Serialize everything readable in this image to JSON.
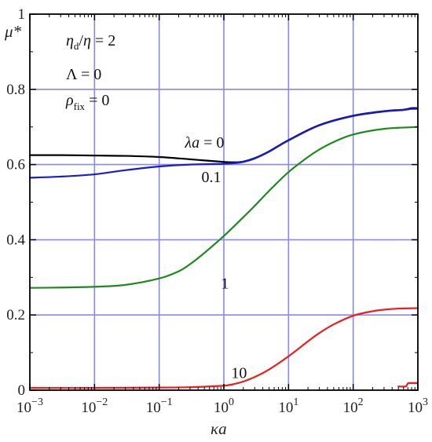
{
  "chart_data": {
    "type": "line",
    "xscale": "log",
    "xlim": [
      0.001,
      1000
    ],
    "ylim": [
      0,
      1
    ],
    "xlabel": "κa",
    "ylabel": "μ*",
    "grid": true,
    "x_ticks": [
      0.001,
      0.01,
      0.1,
      1,
      10,
      100,
      1000
    ],
    "x_tick_labels": [
      {
        "base": "10",
        "exp": "−3"
      },
      {
        "base": "10",
        "exp": "−2"
      },
      {
        "base": "10",
        "exp": "−1"
      },
      {
        "base": "10",
        "exp": "0"
      },
      {
        "base": "10",
        "exp": "1"
      },
      {
        "base": "10",
        "exp": "2"
      },
      {
        "base": "10",
        "exp": "3"
      }
    ],
    "y_ticks": [
      0,
      0.2,
      0.4,
      0.6,
      0.8,
      1
    ],
    "y_tick_labels": [
      "0",
      "0.2",
      "0.4",
      "0.6",
      "0.8",
      "1"
    ],
    "parameters": {
      "line1": {
        "a": "η",
        "a_sub": "d",
        "b": "η",
        "val": "2"
      },
      "line2": {
        "sym": "Λ",
        "val": "0"
      },
      "line3": {
        "sym": "ρ",
        "sub": "fix",
        "val": "0"
      }
    },
    "series": [
      {
        "name": "λa = 0",
        "color": "#000000",
        "x": [
          0.001,
          0.003,
          0.01,
          0.03,
          0.1,
          0.3,
          1,
          1.5,
          2,
          3,
          5,
          10,
          30,
          100,
          300,
          600,
          800,
          1000
        ],
        "y": [
          0.625,
          0.625,
          0.624,
          0.623,
          0.62,
          0.614,
          0.607,
          0.606,
          0.608,
          0.617,
          0.635,
          0.665,
          0.705,
          0.73,
          0.742,
          0.746,
          0.75,
          0.75
        ]
      },
      {
        "name": "0.1",
        "color": "#1c1ccf",
        "x": [
          0.001,
          0.003,
          0.01,
          0.03,
          0.1,
          0.3,
          1,
          1.5,
          2,
          3,
          5,
          10,
          30,
          100,
          300,
          600,
          800,
          1000
        ],
        "y": [
          0.565,
          0.568,
          0.574,
          0.585,
          0.595,
          0.6,
          0.602,
          0.604,
          0.607,
          0.616,
          0.634,
          0.664,
          0.704,
          0.729,
          0.741,
          0.745,
          0.748,
          0.748
        ]
      },
      {
        "name": "1",
        "color": "#1e8a1e",
        "x": [
          0.001,
          0.003,
          0.01,
          0.03,
          0.1,
          0.2,
          0.3,
          0.5,
          1,
          2,
          3,
          5,
          10,
          20,
          30,
          50,
          100,
          300,
          1000
        ],
        "y": [
          0.272,
          0.273,
          0.275,
          0.28,
          0.297,
          0.316,
          0.335,
          0.365,
          0.41,
          0.46,
          0.49,
          0.53,
          0.58,
          0.62,
          0.64,
          0.66,
          0.68,
          0.695,
          0.7
        ]
      },
      {
        "name": "10",
        "color": "#ee1c1c",
        "x": [
          0.001,
          0.01,
          0.1,
          0.3,
          1,
          1.5,
          2,
          3,
          5,
          10,
          20,
          30,
          50,
          100,
          200,
          300,
          500,
          1000
        ],
        "y": [
          0.006,
          0.006,
          0.007,
          0.008,
          0.012,
          0.017,
          0.023,
          0.035,
          0.055,
          0.09,
          0.13,
          0.152,
          0.175,
          0.198,
          0.21,
          0.214,
          0.217,
          0.218
        ]
      },
      {
        "name": "",
        "color": "#ee1c1c",
        "x": [
          500,
          650,
          700,
          800,
          1000
        ],
        "y": [
          0.01,
          0.01,
          0.018,
          0.019,
          0.019
        ]
      }
    ],
    "series_labels": [
      {
        "series": 0,
        "text": "λa = 0",
        "x": 0.25,
        "y": 0.645
      },
      {
        "series": 1,
        "text": "0.1",
        "x": 0.45,
        "y": 0.553
      },
      {
        "series": 2,
        "text": "1",
        "x": 0.9,
        "y": 0.27
      },
      {
        "series": 3,
        "text": "10",
        "x": 1.3,
        "y": 0.032
      }
    ]
  }
}
